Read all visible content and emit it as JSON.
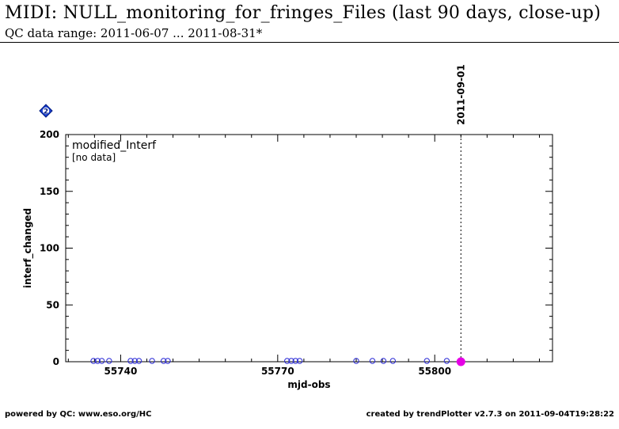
{
  "header": {
    "title": "MIDI: NULL_monitoring_for_fringes_Files (last 90 days, close-up)",
    "subtitle": "QC data range: 2011-06-07 ... 2011-08-31*"
  },
  "footer": {
    "left": "powered by QC: www.eso.org/HC",
    "right": "created by trendPlotter v2.7.3 on 2011-09-04T19:28:22"
  },
  "chart_data": {
    "type": "scatter",
    "xlabel": "mjd-obs",
    "ylabel": "interf_changed",
    "xlim": [
      55729.5,
      55822.5
    ],
    "ylim": [
      0,
      200
    ],
    "x_ticks": [
      55740,
      55770,
      55800
    ],
    "y_ticks": [
      0,
      50,
      100,
      150,
      200
    ],
    "legend_title": "modified_Interf",
    "legend_note": "[no data]",
    "marker_label": "2011-09-01",
    "marker_x": 55805,
    "badge": "2",
    "series": [
      {
        "marker": "open-circle",
        "color": "#2b2bd6",
        "x": [
          55734.8,
          55735.6,
          55736.4,
          55737.8,
          55741.9,
          55742.7,
          55743.5,
          55746.0,
          55748.2,
          55749.0,
          55771.8,
          55772.6,
          55773.4,
          55774.2,
          55785.0,
          55788.1,
          55790.2,
          55792.0,
          55798.5,
          55802.3
        ],
        "y": [
          0,
          0,
          0,
          0,
          0,
          0,
          0,
          0,
          0,
          0,
          0,
          0,
          0,
          0,
          0,
          0,
          0,
          0,
          0,
          0
        ]
      },
      {
        "marker": "filled-circle",
        "color": "#e600e6",
        "x": [
          55805
        ],
        "y": [
          0
        ]
      }
    ]
  }
}
